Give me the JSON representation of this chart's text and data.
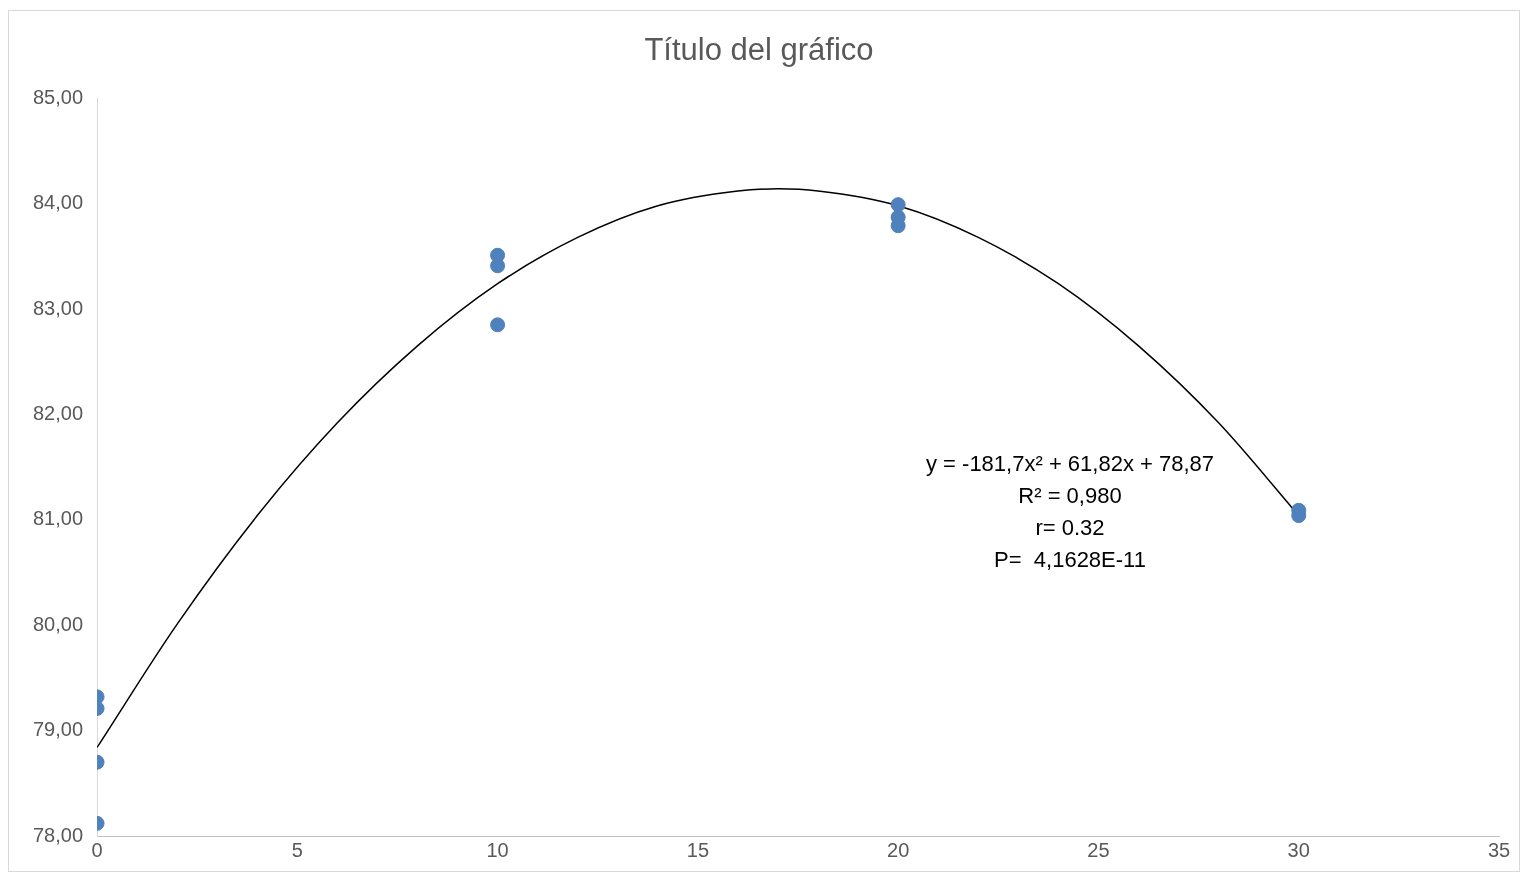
{
  "chart_data": {
    "type": "scatter",
    "title": "Título del gráfico",
    "xlim": [
      0,
      35
    ],
    "xticks": [
      0,
      5,
      10,
      15,
      20,
      25,
      30,
      35
    ],
    "ylim": [
      78,
      85
    ],
    "yticks": [
      {
        "value": 78,
        "label": "78,00"
      },
      {
        "value": 79,
        "label": "79,00"
      },
      {
        "value": 80,
        "label": "80,00"
      },
      {
        "value": 81,
        "label": "81,00"
      },
      {
        "value": 82,
        "label": "82,00"
      },
      {
        "value": 83,
        "label": "83,00"
      },
      {
        "value": 84,
        "label": "84,00"
      },
      {
        "value": 85,
        "label": "85,00"
      }
    ],
    "grid": false,
    "legend": false,
    "marker": "circle",
    "series": [
      {
        "color": "#4f81bd",
        "x": [
          0,
          0,
          0,
          0,
          10,
          10,
          10,
          20,
          20,
          20,
          30,
          30
        ],
        "values": [
          79.32,
          79.21,
          78.7,
          78.12,
          83.51,
          83.41,
          82.85,
          83.99,
          83.87,
          83.79,
          81.09,
          81.04
        ]
      },
      {
        "type": "line",
        "marker": "none",
        "color": "#000000",
        "x": [
          0,
          2,
          4,
          6,
          8,
          10,
          12,
          14,
          16,
          17,
          18,
          20,
          22,
          24,
          26,
          28,
          30
        ],
        "values": [
          78.84,
          80.01,
          81.04,
          81.92,
          82.65,
          83.24,
          83.68,
          83.98,
          84.12,
          84.14,
          84.12,
          83.98,
          83.68,
          83.24,
          82.65,
          81.92,
          81.04
        ]
      }
    ],
    "annotations": [
      "y = -181,7x² + 61,82x + 78,87",
      "R² = 0,980",
      "r= 0.32",
      "P=  4,1628E-11"
    ]
  }
}
